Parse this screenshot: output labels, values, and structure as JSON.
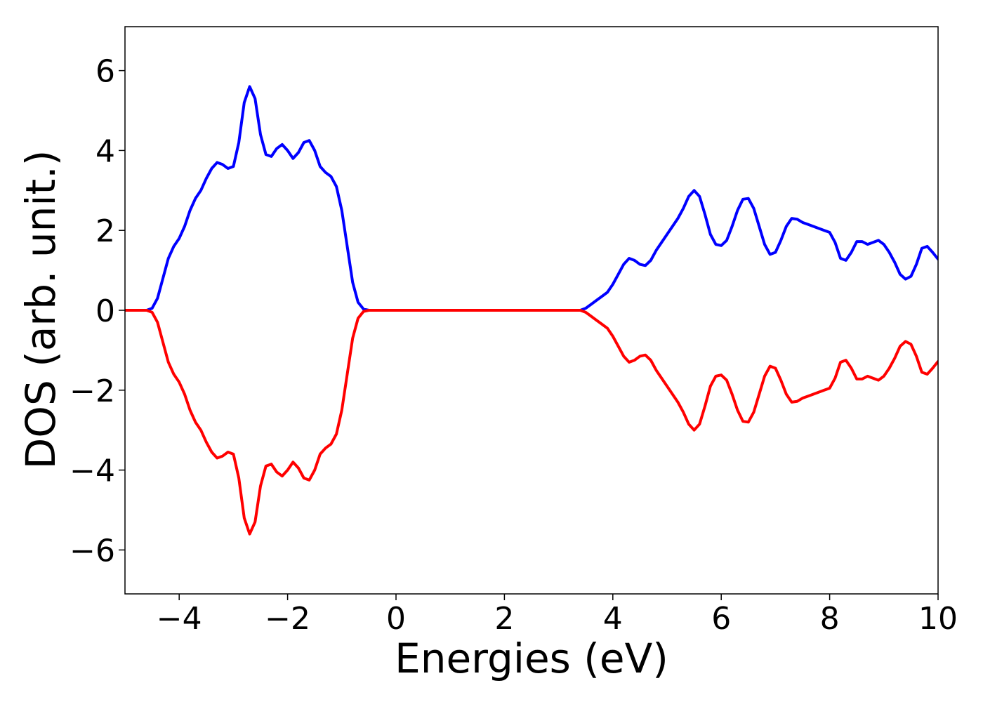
{
  "chart_data": {
    "type": "line",
    "xlabel": "Energies (eV)",
    "ylabel": "DOS (arb. unit.)",
    "x": [
      -5,
      -4.6,
      -4.5,
      -4.4,
      -4.3,
      -4.2,
      -4.1,
      -4.0,
      -3.9,
      -3.8,
      -3.7,
      -3.6,
      -3.5,
      -3.4,
      -3.3,
      -3.2,
      -3.1,
      -3.0,
      -2.9,
      -2.8,
      -2.7,
      -2.6,
      -2.5,
      -2.4,
      -2.3,
      -2.2,
      -2.1,
      -2.0,
      -1.9,
      -1.8,
      -1.7,
      -1.6,
      -1.5,
      -1.4,
      -1.3,
      -1.2,
      -1.1,
      -1.0,
      -0.9,
      -0.8,
      -0.7,
      -0.6,
      -0.5,
      3.4,
      3.5,
      3.6,
      3.7,
      3.8,
      3.9,
      4.0,
      4.1,
      4.2,
      4.3,
      4.4,
      4.5,
      4.6,
      4.7,
      4.8,
      4.9,
      5.0,
      5.1,
      5.2,
      5.3,
      5.4,
      5.5,
      5.6,
      5.7,
      5.8,
      5.9,
      6.0,
      6.1,
      6.2,
      6.3,
      6.4,
      6.5,
      6.6,
      6.7,
      6.8,
      6.9,
      7.0,
      7.1,
      7.2,
      7.3,
      7.4,
      7.5,
      7.6,
      7.7,
      7.8,
      7.9,
      8.0,
      8.1,
      8.2,
      8.3,
      8.4,
      8.5,
      8.6,
      8.7,
      8.8,
      8.9,
      9.0,
      9.1,
      9.2,
      9.3,
      9.4,
      9.5,
      9.6,
      9.7,
      9.8,
      9.9,
      10
    ],
    "series": [
      {
        "color": "#0000ff",
        "values": [
          0,
          0,
          0.05,
          0.3,
          0.8,
          1.3,
          1.6,
          1.8,
          2.1,
          2.5,
          2.8,
          3.0,
          3.3,
          3.55,
          3.7,
          3.65,
          3.55,
          3.6,
          4.2,
          5.2,
          5.6,
          5.3,
          4.4,
          3.9,
          3.85,
          4.05,
          4.15,
          4.0,
          3.8,
          3.95,
          4.2,
          4.25,
          4.0,
          3.6,
          3.45,
          3.35,
          3.1,
          2.5,
          1.6,
          0.7,
          0.2,
          0.03,
          0,
          0,
          0.05,
          0.15,
          0.25,
          0.35,
          0.45,
          0.65,
          0.9,
          1.15,
          1.3,
          1.25,
          1.15,
          1.12,
          1.25,
          1.5,
          1.7,
          1.9,
          2.1,
          2.3,
          2.55,
          2.85,
          3.0,
          2.85,
          2.4,
          1.9,
          1.65,
          1.62,
          1.75,
          2.1,
          2.5,
          2.78,
          2.8,
          2.55,
          2.1,
          1.65,
          1.4,
          1.45,
          1.75,
          2.1,
          2.3,
          2.28,
          2.2,
          2.15,
          2.1,
          2.05,
          2.0,
          1.95,
          1.7,
          1.3,
          1.25,
          1.45,
          1.72,
          1.72,
          1.65,
          1.7,
          1.75,
          1.65,
          1.45,
          1.2,
          0.9,
          0.78,
          0.85,
          1.15,
          1.55,
          1.6,
          1.45,
          1.28
        ]
      },
      {
        "color": "#ff0000",
        "values": [
          0,
          0,
          -0.05,
          -0.3,
          -0.8,
          -1.3,
          -1.6,
          -1.8,
          -2.1,
          -2.5,
          -2.8,
          -3.0,
          -3.3,
          -3.55,
          -3.7,
          -3.65,
          -3.55,
          -3.6,
          -4.2,
          -5.2,
          -5.6,
          -5.3,
          -4.4,
          -3.9,
          -3.85,
          -4.05,
          -4.15,
          -4.0,
          -3.8,
          -3.95,
          -4.2,
          -4.25,
          -4.0,
          -3.6,
          -3.45,
          -3.35,
          -3.1,
          -2.5,
          -1.6,
          -0.7,
          -0.2,
          -0.03,
          0,
          0,
          -0.05,
          -0.15,
          -0.25,
          -0.35,
          -0.45,
          -0.65,
          -0.9,
          -1.15,
          -1.3,
          -1.25,
          -1.15,
          -1.12,
          -1.25,
          -1.5,
          -1.7,
          -1.9,
          -2.1,
          -2.3,
          -2.55,
          -2.85,
          -3.0,
          -2.85,
          -2.4,
          -1.9,
          -1.65,
          -1.62,
          -1.75,
          -2.1,
          -2.5,
          -2.78,
          -2.8,
          -2.55,
          -2.1,
          -1.65,
          -1.4,
          -1.45,
          -1.75,
          -2.1,
          -2.3,
          -2.28,
          -2.2,
          -2.15,
          -2.1,
          -2.05,
          -2.0,
          -1.95,
          -1.7,
          -1.3,
          -1.25,
          -1.45,
          -1.72,
          -1.72,
          -1.65,
          -1.7,
          -1.75,
          -1.65,
          -1.45,
          -1.2,
          -0.9,
          -0.78,
          -0.85,
          -1.15,
          -1.55,
          -1.6,
          -1.45,
          -1.28
        ]
      }
    ],
    "xlim": [
      -5,
      10
    ],
    "xticks": [
      {
        "value": -4,
        "label": "−4"
      },
      {
        "value": -2,
        "label": "−2"
      },
      0,
      2,
      4,
      6,
      8,
      10
    ],
    "ylim": [
      -7.1,
      7.1
    ],
    "yticks": [
      {
        "value": -6,
        "label": "−6"
      },
      {
        "value": -4,
        "label": "−4"
      },
      {
        "value": -2,
        "label": "−2"
      },
      0,
      2,
      4,
      6
    ]
  }
}
